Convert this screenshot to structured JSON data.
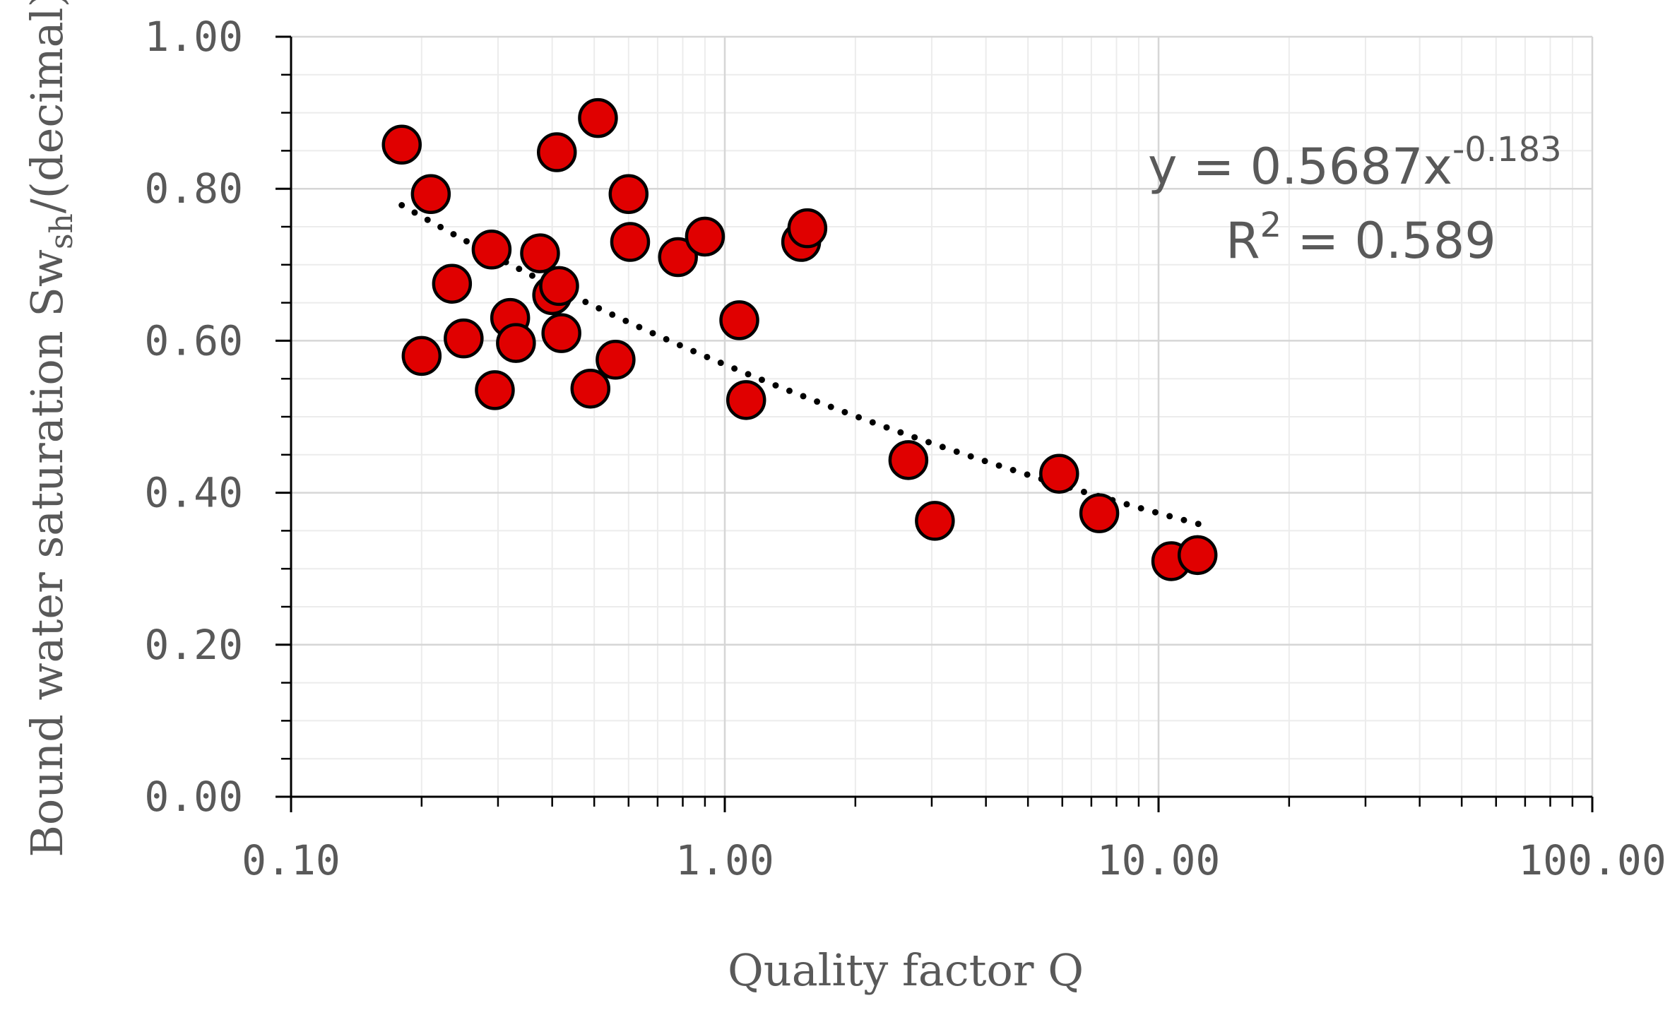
{
  "chart_data": {
    "type": "scatter",
    "title": "",
    "xlabel": "Quality factor Q",
    "ylabel_main": "Bound water saturation Sw",
    "ylabel_sub": "sh",
    "ylabel_tail": "/(decimal)",
    "x_scale": "log",
    "xlim": [
      0.1,
      100
    ],
    "ylim": [
      0,
      1
    ],
    "x_ticks": [
      {
        "value": 0.1,
        "label": "0.10"
      },
      {
        "value": 1,
        "label": "1.00"
      },
      {
        "value": 10,
        "label": "10.00"
      },
      {
        "value": 100,
        "label": "100.00"
      }
    ],
    "y_ticks": [
      {
        "value": 0,
        "label": "0.00"
      },
      {
        "value": 0.2,
        "label": "0.20"
      },
      {
        "value": 0.4,
        "label": "0.40"
      },
      {
        "value": 0.6,
        "label": "0.60"
      },
      {
        "value": 0.8,
        "label": "0.80"
      },
      {
        "value": 1.0,
        "label": "1.00"
      }
    ],
    "grid": true,
    "marker_color": "#e00000",
    "marker_edge_color": "#000000",
    "trendline": {
      "type": "power",
      "a": 0.5687,
      "b": -0.183,
      "x_range": [
        0.18,
        12.5
      ],
      "color": "#000000",
      "equation_main": "y = 0.5687x",
      "equation_exp": "-0.183",
      "r2_main": "R",
      "r2_exp": "2",
      "r2_rest": " = 0.589"
    },
    "points": [
      {
        "x": 0.18,
        "y": 0.858
      },
      {
        "x": 0.21,
        "y": 0.793
      },
      {
        "x": 0.2,
        "y": 0.58
      },
      {
        "x": 0.235,
        "y": 0.675
      },
      {
        "x": 0.25,
        "y": 0.603
      },
      {
        "x": 0.29,
        "y": 0.72
      },
      {
        "x": 0.295,
        "y": 0.535
      },
      {
        "x": 0.32,
        "y": 0.63
      },
      {
        "x": 0.33,
        "y": 0.597
      },
      {
        "x": 0.375,
        "y": 0.715
      },
      {
        "x": 0.4,
        "y": 0.66
      },
      {
        "x": 0.41,
        "y": 0.848
      },
      {
        "x": 0.415,
        "y": 0.672
      },
      {
        "x": 0.42,
        "y": 0.61
      },
      {
        "x": 0.49,
        "y": 0.537
      },
      {
        "x": 0.51,
        "y": 0.893
      },
      {
        "x": 0.56,
        "y": 0.575
      },
      {
        "x": 0.6,
        "y": 0.793
      },
      {
        "x": 0.605,
        "y": 0.73
      },
      {
        "x": 0.78,
        "y": 0.71
      },
      {
        "x": 0.9,
        "y": 0.737
      },
      {
        "x": 1.08,
        "y": 0.627
      },
      {
        "x": 1.12,
        "y": 0.522
      },
      {
        "x": 1.5,
        "y": 0.73
      },
      {
        "x": 1.55,
        "y": 0.748
      },
      {
        "x": 2.65,
        "y": 0.443
      },
      {
        "x": 3.05,
        "y": 0.363
      },
      {
        "x": 5.9,
        "y": 0.425
      },
      {
        "x": 7.3,
        "y": 0.373
      },
      {
        "x": 10.7,
        "y": 0.31
      },
      {
        "x": 12.3,
        "y": 0.318
      }
    ]
  }
}
